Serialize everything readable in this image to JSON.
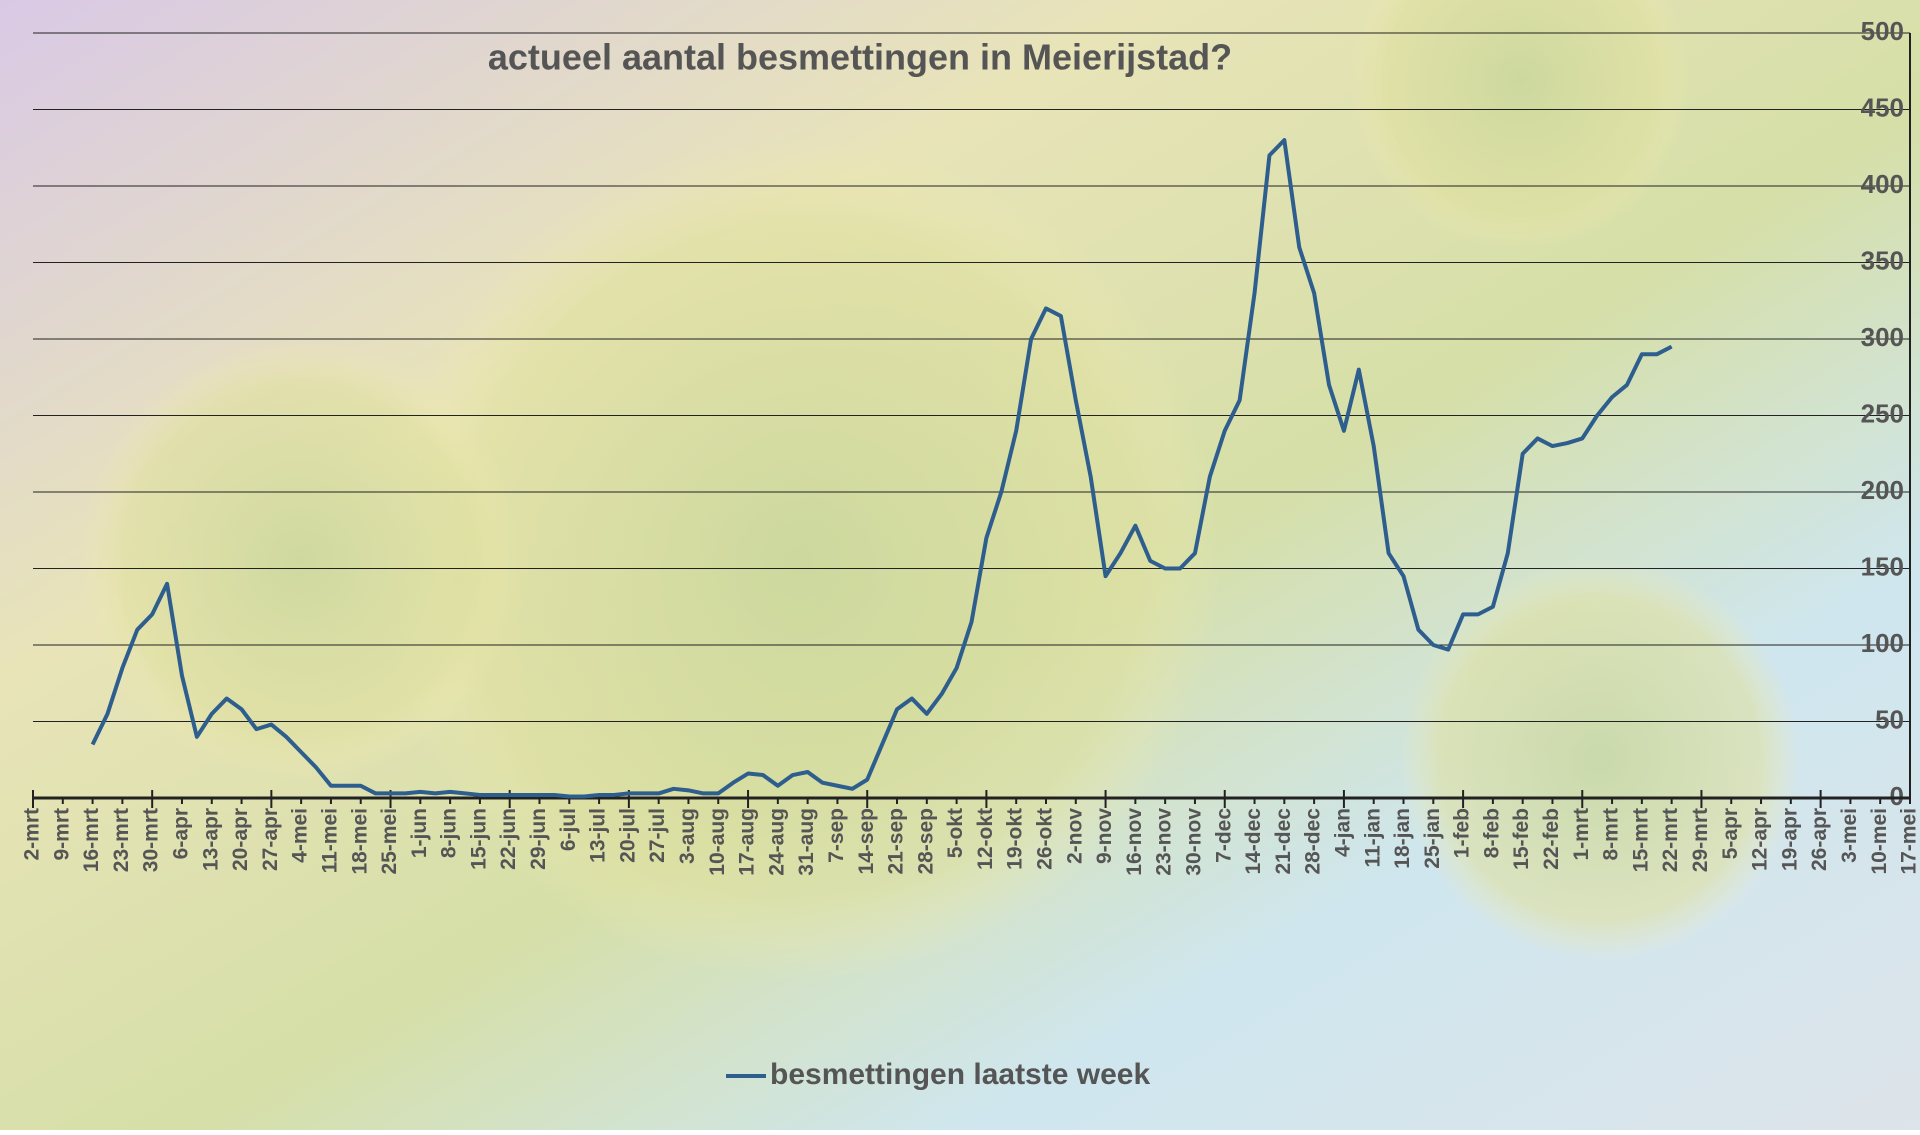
{
  "chart_data": {
    "type": "line",
    "title": "actueel aantal besmettingen in Meierijstad?",
    "categories": [
      "2-mrt",
      null,
      "9-mrt",
      null,
      "16-mrt",
      null,
      "23-mrt",
      null,
      "30-mrt",
      null,
      "6-apr",
      null,
      "13-apr",
      null,
      "20-apr",
      null,
      "27-apr",
      null,
      "4-mei",
      null,
      "11-mei",
      null,
      "18-mei",
      null,
      "25-mei",
      null,
      "1-jun",
      null,
      "8-jun",
      null,
      "15-jun",
      null,
      "22-jun",
      null,
      "29-jun",
      null,
      "6-jul",
      null,
      "13-jul",
      null,
      "20-jul",
      null,
      "27-jul",
      null,
      "3-aug",
      null,
      "10-aug",
      null,
      "17-aug",
      null,
      "24-aug",
      null,
      "31-aug",
      null,
      "7-sep",
      null,
      "14-sep",
      null,
      "21-sep",
      null,
      "28-sep",
      null,
      "5-okt",
      null,
      "12-okt",
      null,
      "19-okt",
      null,
      "26-okt",
      null,
      "2-nov",
      null,
      "9-nov",
      null,
      "16-nov",
      null,
      "23-nov",
      null,
      "30-nov",
      null,
      "7-dec",
      null,
      "14-dec",
      null,
      "21-dec",
      null,
      "28-dec",
      null,
      "4-jan",
      null,
      "11-jan",
      null,
      "18-jan",
      null,
      "25-jan",
      null,
      "1-feb",
      null,
      "8-feb",
      null,
      "15-feb",
      null,
      "22-feb",
      null,
      "1-mrt",
      null,
      "8-mrt",
      null,
      "15-mrt",
      null,
      "22-mrt",
      null,
      "29-mrt",
      null,
      "5-apr",
      null,
      "12-apr",
      null,
      "19-apr",
      null,
      "26-apr",
      null,
      "3-mei",
      null,
      "10-mei",
      null,
      "17-mei"
    ],
    "series": [
      {
        "name": "besmettingen laatste week",
        "color": "#2e5e8e",
        "values": [
          null,
          null,
          null,
          null,
          35,
          55,
          85,
          110,
          120,
          140,
          80,
          40,
          55,
          65,
          58,
          45,
          48,
          40,
          30,
          20,
          8,
          8,
          8,
          3,
          3,
          3,
          4,
          3,
          4,
          3,
          2,
          2,
          2,
          2,
          2,
          2,
          1,
          1,
          2,
          2,
          3,
          3,
          3,
          6,
          5,
          3,
          3,
          10,
          16,
          15,
          8,
          15,
          17,
          10,
          8,
          6,
          12,
          35,
          58,
          65,
          55,
          68,
          85,
          115,
          170,
          200,
          240,
          300,
          320,
          315,
          260,
          210,
          145,
          160,
          178,
          155,
          150,
          150,
          160,
          210,
          240,
          260,
          330,
          420,
          430,
          360,
          330,
          270,
          240,
          280,
          230,
          160,
          145,
          110,
          100,
          97,
          120,
          120,
          125,
          160,
          225,
          235,
          230,
          232,
          235,
          250,
          262,
          270,
          290,
          290,
          295,
          null,
          null,
          null,
          null,
          null,
          null,
          null,
          null,
          null,
          null,
          null,
          null,
          null,
          null,
          null,
          null
        ]
      }
    ],
    "ylim": [
      0,
      500
    ],
    "yticks": [
      0,
      50,
      100,
      150,
      200,
      250,
      300,
      350,
      400,
      450,
      500
    ],
    "grid": true,
    "legend": "bottom"
  }
}
